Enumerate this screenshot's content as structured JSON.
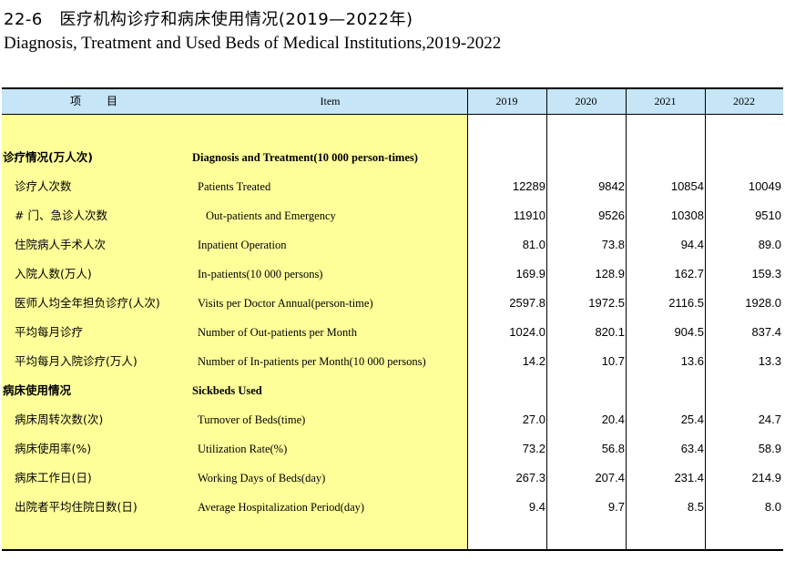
{
  "title_cn": "22-6　医疗机构诊疗和病床使用情况(2019—2022年)",
  "title_en": "Diagnosis, Treatment and Used Beds of Medical Institutions,2019-2022",
  "header": {
    "item_cn": "项　目",
    "item_en": "Item",
    "years": [
      "2019",
      "2020",
      "2021",
      "2022"
    ]
  },
  "rows": [
    {
      "cn": "诊疗情况(万人次)",
      "en": "Diagnosis and Treatment(10 000 person-times)",
      "section": true,
      "values": [
        "",
        "",
        "",
        ""
      ]
    },
    {
      "cn": "诊疗人次数",
      "en": "Patients Treated",
      "values": [
        "12289",
        "9842",
        "10854",
        "10049"
      ]
    },
    {
      "cn": "# 门、急诊人次数",
      "en": "Out-patients and Emergency",
      "values": [
        "11910",
        "9526",
        "10308",
        "9510"
      ]
    },
    {
      "cn": "住院病人手术人次",
      "en": "Inpatient Operation",
      "values": [
        "81.0",
        "73.8",
        "94.4",
        "89.0"
      ]
    },
    {
      "cn": "入院人数(万人)",
      "en": "In-patients(10 000 persons)",
      "values": [
        "169.9",
        "128.9",
        "162.7",
        "159.3"
      ]
    },
    {
      "cn": "医师人均全年担负诊疗(人次)",
      "en": "Visits per Doctor Annual(person-time)",
      "values": [
        "2597.8",
        "1972.5",
        "2116.5",
        "1928.0"
      ]
    },
    {
      "cn": "平均每月诊疗",
      "en": "Number of Out-patients per Month",
      "values": [
        "1024.0",
        "820.1",
        "904.5",
        "837.4"
      ]
    },
    {
      "cn": "平均每月入院诊疗(万人)",
      "en": "Number of In-patients per Month(10 000 persons)",
      "values": [
        "14.2",
        "10.7",
        "13.6",
        "13.3"
      ]
    },
    {
      "cn": "病床使用情况",
      "en": "Sickbeds Used",
      "section": true,
      "values": [
        "",
        "",
        "",
        ""
      ]
    },
    {
      "cn": "病床周转次数(次)",
      "en": "Turnover of Beds(time)",
      "values": [
        "27.0",
        "20.4",
        "25.4",
        "24.7"
      ]
    },
    {
      "cn": "病床使用率(%)",
      "en": "Utilization Rate(%)",
      "values": [
        "73.2",
        "56.8",
        "63.4",
        "58.9"
      ]
    },
    {
      "cn": "病床工作日(日)",
      "en": "Working Days of Beds(day)",
      "values": [
        "267.3",
        "207.4",
        "231.4",
        "214.9"
      ]
    },
    {
      "cn": "出院者平均住院日数(日)",
      "en": "Average Hospitalization Period(day)",
      "values": [
        "9.4",
        "9.7",
        "8.5",
        "8.0"
      ]
    }
  ]
}
